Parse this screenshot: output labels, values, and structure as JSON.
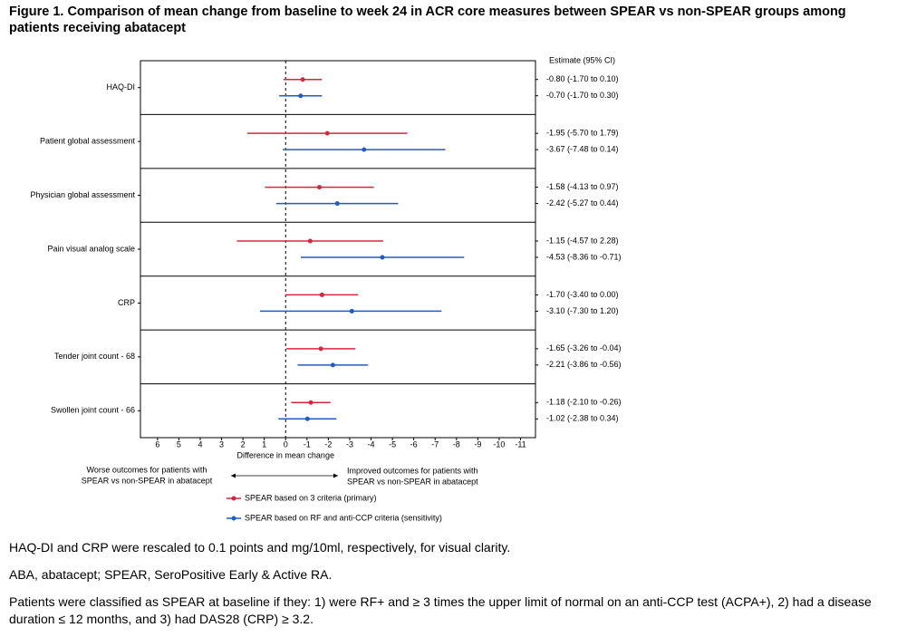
{
  "chart_data": {
    "type": "forest",
    "title": "Figure 1. Comparison of mean change from baseline to week 24 in ACR core measures between SPEAR vs non-SPEAR groups among patients receiving abatacept",
    "x_label": "Difference in mean change",
    "estimate_header": "Estimate (95% CI)",
    "categories": [
      "HAQ-DI",
      "Patient global assessment",
      "Physician global assessment",
      "Pain visual analog scale",
      "CRP",
      "Tender joint count - 68",
      "Swollen joint count - 66"
    ],
    "series": [
      {
        "name": "SPEAR based on 3 criteria (primary)",
        "color": "#d7263d",
        "values": [
          -0.8,
          -1.95,
          -1.58,
          -1.15,
          -1.7,
          -1.65,
          -1.18
        ],
        "lower": [
          -1.7,
          -5.7,
          -4.13,
          -4.57,
          -3.4,
          -3.26,
          -2.1
        ],
        "upper": [
          0.1,
          1.79,
          0.97,
          2.28,
          0.0,
          -0.04,
          -0.26
        ],
        "value_labels": [
          "-0.80 (-1.70 to 0.10)",
          "-1.95 (-5.70 to 1.79)",
          "-1.58 (-4.13 to 0.97)",
          "-1.15 (-4.57 to 2.28)",
          "-1.70 (-3.40 to 0.00)",
          "-1.65 (-3.26 to -0.04)",
          "-1.18 (-2.10 to -0.26)"
        ]
      },
      {
        "name": "SPEAR based on RF and anti-CCP criteria (sensitivity)",
        "color": "#1f5cc4",
        "values": [
          -0.7,
          -3.67,
          -2.42,
          -4.53,
          -3.1,
          -2.21,
          -1.02
        ],
        "lower": [
          -1.7,
          -7.48,
          -5.27,
          -8.36,
          -7.3,
          -3.86,
          -2.38
        ],
        "upper": [
          0.3,
          0.14,
          0.44,
          -0.71,
          1.2,
          -0.56,
          0.34
        ],
        "value_labels": [
          "-0.70 (-1.70 to 0.30)",
          "-3.67 (-7.48 to 0.14)",
          "-2.42 (-5.27 to 0.44)",
          "-4.53 (-8.36 to -0.71)",
          "-3.10 (-7.30 to 1.20)",
          "-2.21 (-3.86 to -0.56)",
          "-1.02 (-2.38 to 0.34)"
        ]
      }
    ],
    "xlim": [
      6.8,
      -11.7
    ],
    "xticks": [
      6,
      5,
      4,
      3,
      2,
      1,
      0,
      -1,
      -2,
      -3,
      -4,
      -5,
      -6,
      -7,
      -8,
      -9,
      -10,
      -11
    ],
    "annotations": {
      "left": [
        "Worse outcomes for patients with",
        "SPEAR vs non-SPEAR in abatacept"
      ],
      "right": [
        "Improved outcomes for patients with",
        "SPEAR vs non-SPEAR  in abatacept"
      ]
    },
    "notes": [
      "HAQ-DI and CRP were rescaled to 0.1 points and mg/10ml, respectively, for visual clarity.",
      "ABA, abatacept; SPEAR, SeroPositive Early & Active RA.",
      "Patients were classified as SPEAR at baseline if they: 1) were RF+ and ≥ 3 times the upper limit of normal on an anti-CCP test (ACPA+), 2) had a disease duration ≤ 12 months, and 3) had DAS28 (CRP) ≥ 3.2."
    ]
  }
}
